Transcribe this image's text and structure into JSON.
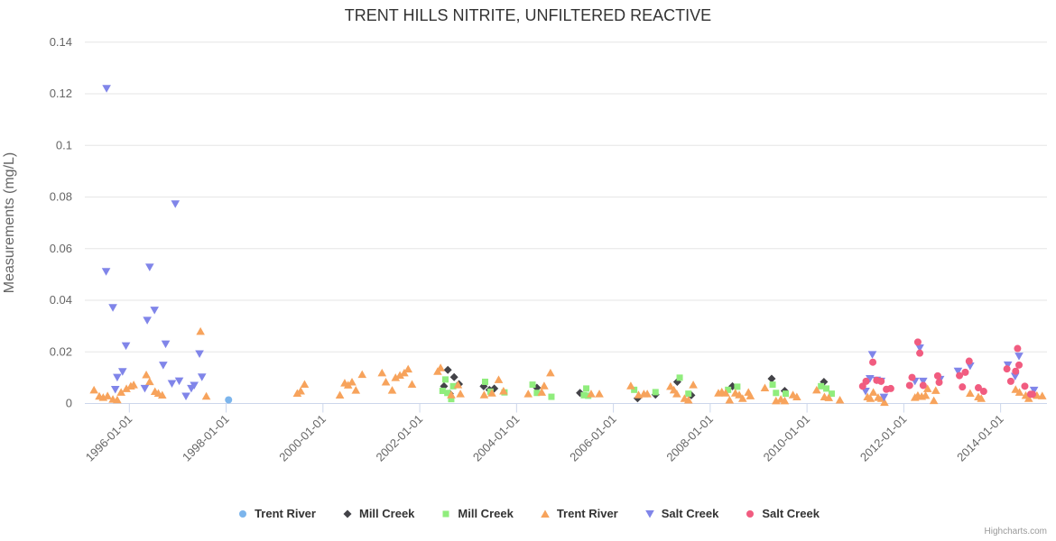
{
  "title": "TRENT HILLS NITRITE, UNFILTERED REACTIVE",
  "credit": "Highcharts.com",
  "chart_data": {
    "type": "scatter",
    "title": "TRENT HILLS NITRITE, UNFILTERED REACTIVE",
    "xlabel": "",
    "ylabel": "Measurements (mg/L)",
    "ylim": [
      0,
      0.14
    ],
    "yticks": [
      0,
      0.02,
      0.04,
      0.06,
      0.08,
      0.1,
      0.12,
      0.14
    ],
    "ytick_labels": [
      "0",
      "0.02",
      "0.04",
      "0.06",
      "0.08",
      "0.1",
      "0.12",
      "0.14"
    ],
    "xticks": [
      {
        "year": 1996,
        "label": "1996-01-01"
      },
      {
        "year": 1998,
        "label": "1998-01-01"
      },
      {
        "year": 2000,
        "label": "2000-01-01"
      },
      {
        "year": 2002,
        "label": "2002-01-01"
      },
      {
        "year": 2004,
        "label": "2004-01-01"
      },
      {
        "year": 2006,
        "label": "2006-01-01"
      },
      {
        "year": 2008,
        "label": "2008-01-01"
      },
      {
        "year": 2010,
        "label": "2010-01-01"
      },
      {
        "year": 2012,
        "label": "2012-01-01"
      },
      {
        "year": 2014,
        "label": "2014-01-01"
      }
    ],
    "grid": true,
    "legend_position": "bottom",
    "colors": {
      "grid": "#e6e6e6",
      "axis_line": "#ccd6eb",
      "tick": "#ccd6eb",
      "axis_label": "#666666",
      "title": "#333333",
      "legend_text": "#333333",
      "credit": "#999999"
    },
    "series": [
      {
        "name": "Trent River",
        "marker": "circle",
        "color": "#7cb5ec",
        "points": [
          [
            1998.05,
            0.0014
          ]
        ]
      },
      {
        "name": "Mill Creek",
        "marker": "diamond",
        "color": "#434348",
        "points": [
          [
            2002.5,
            0.0067
          ],
          [
            2002.58,
            0.013
          ],
          [
            2002.62,
            0.0038
          ],
          [
            2002.71,
            0.0102
          ],
          [
            2002.81,
            0.0075
          ],
          [
            2003.32,
            0.0067
          ],
          [
            2003.44,
            0.0053
          ],
          [
            2003.54,
            0.0058
          ],
          [
            2004.42,
            0.0061
          ],
          [
            2005.31,
            0.0041
          ],
          [
            2006.5,
            0.002
          ],
          [
            2006.87,
            0.0034
          ],
          [
            2007.32,
            0.0084
          ],
          [
            2007.61,
            0.0032
          ],
          [
            2008.46,
            0.0067
          ],
          [
            2009.27,
            0.0096
          ],
          [
            2009.54,
            0.0049
          ],
          [
            2010.35,
            0.0084
          ]
        ]
      },
      {
        "name": "Mill Creek",
        "marker": "square",
        "color": "#90ed7d",
        "points": [
          [
            2002.47,
            0.0049
          ],
          [
            2002.53,
            0.0093
          ],
          [
            2002.57,
            0.0041
          ],
          [
            2002.65,
            0.0017
          ],
          [
            2002.69,
            0.0067
          ],
          [
            2003.35,
            0.0084
          ],
          [
            2003.46,
            0.0046
          ],
          [
            2003.75,
            0.0043
          ],
          [
            2004.33,
            0.0073
          ],
          [
            2004.42,
            0.0041
          ],
          [
            2004.72,
            0.0026
          ],
          [
            2005.39,
            0.0032
          ],
          [
            2005.44,
            0.0058
          ],
          [
            2005.48,
            0.003
          ],
          [
            2006.43,
            0.0053
          ],
          [
            2006.87,
            0.0044
          ],
          [
            2007.37,
            0.01
          ],
          [
            2007.55,
            0.0038
          ],
          [
            2008.37,
            0.0053
          ],
          [
            2008.56,
            0.0065
          ],
          [
            2009.29,
            0.0073
          ],
          [
            2009.36,
            0.0041
          ],
          [
            2009.56,
            0.0038
          ],
          [
            2010.29,
            0.0067
          ],
          [
            2010.4,
            0.0058
          ],
          [
            2010.51,
            0.0038
          ]
        ]
      },
      {
        "name": "Trent River",
        "marker": "triangle",
        "color": "#f7a35c",
        "points": [
          [
            1995.27,
            0.0053
          ],
          [
            1995.38,
            0.0029
          ],
          [
            1995.46,
            0.0024
          ],
          [
            1995.55,
            0.003
          ],
          [
            1995.66,
            0.0017
          ],
          [
            1995.75,
            0.0015
          ],
          [
            1995.83,
            0.0044
          ],
          [
            1995.94,
            0.0058
          ],
          [
            1996.03,
            0.0068
          ],
          [
            1996.09,
            0.0073
          ],
          [
            1996.35,
            0.0112
          ],
          [
            1996.42,
            0.0085
          ],
          [
            1996.53,
            0.0047
          ],
          [
            1996.6,
            0.004
          ],
          [
            1996.68,
            0.0033
          ],
          [
            1997.47,
            0.028
          ],
          [
            1997.59,
            0.0029
          ],
          [
            1999.47,
            0.004
          ],
          [
            1999.54,
            0.0049
          ],
          [
            1999.62,
            0.0075
          ],
          [
            2000.35,
            0.0033
          ],
          [
            2000.45,
            0.008
          ],
          [
            2000.52,
            0.0072
          ],
          [
            2000.6,
            0.0084
          ],
          [
            2000.68,
            0.0052
          ],
          [
            2000.81,
            0.0113
          ],
          [
            2001.22,
            0.0119
          ],
          [
            2001.3,
            0.0084
          ],
          [
            2001.43,
            0.0052
          ],
          [
            2001.5,
            0.0101
          ],
          [
            2001.59,
            0.011
          ],
          [
            2001.68,
            0.0119
          ],
          [
            2001.76,
            0.0134
          ],
          [
            2001.84,
            0.0075
          ],
          [
            2002.37,
            0.0125
          ],
          [
            2002.43,
            0.0139
          ],
          [
            2002.65,
            0.0034
          ],
          [
            2002.79,
            0.0073
          ],
          [
            2002.84,
            0.0038
          ],
          [
            2003.33,
            0.0034
          ],
          [
            2003.49,
            0.0041
          ],
          [
            2003.63,
            0.0093
          ],
          [
            2003.73,
            0.0049
          ],
          [
            2004.24,
            0.0038
          ],
          [
            2004.52,
            0.0044
          ],
          [
            2004.57,
            0.0069
          ],
          [
            2004.7,
            0.0119
          ],
          [
            2005.54,
            0.0038
          ],
          [
            2005.71,
            0.0038
          ],
          [
            2006.36,
            0.0069
          ],
          [
            2006.52,
            0.0034
          ],
          [
            2006.63,
            0.0038
          ],
          [
            2006.7,
            0.0038
          ],
          [
            2007.18,
            0.0067
          ],
          [
            2007.25,
            0.0053
          ],
          [
            2007.31,
            0.0038
          ],
          [
            2007.47,
            0.002
          ],
          [
            2007.55,
            0.0014
          ],
          [
            2007.65,
            0.0073
          ],
          [
            2008.17,
            0.0041
          ],
          [
            2008.24,
            0.0046
          ],
          [
            2008.32,
            0.0041
          ],
          [
            2008.4,
            0.0014
          ],
          [
            2008.52,
            0.0041
          ],
          [
            2008.6,
            0.0034
          ],
          [
            2008.67,
            0.002
          ],
          [
            2008.79,
            0.0044
          ],
          [
            2008.83,
            0.003
          ],
          [
            2009.13,
            0.0061
          ],
          [
            2009.36,
            0.0011
          ],
          [
            2009.46,
            0.0017
          ],
          [
            2009.54,
            0.0011
          ],
          [
            2009.71,
            0.0034
          ],
          [
            2009.79,
            0.0026
          ],
          [
            2010.2,
            0.0053
          ],
          [
            2010.36,
            0.0026
          ],
          [
            2010.45,
            0.0023
          ],
          [
            2010.68,
            0.0014
          ],
          [
            2011.25,
            0.0026
          ],
          [
            2011.31,
            0.002
          ],
          [
            2011.37,
            0.0044
          ],
          [
            2011.47,
            0.0024
          ],
          [
            2011.54,
            0.002
          ],
          [
            2011.6,
            0.0005
          ],
          [
            2012.23,
            0.0024
          ],
          [
            2012.29,
            0.0032
          ],
          [
            2012.37,
            0.0028
          ],
          [
            2012.45,
            0.0032
          ],
          [
            2012.49,
            0.0058
          ],
          [
            2012.62,
            0.0012
          ],
          [
            2012.66,
            0.0051
          ],
          [
            2013.37,
            0.004
          ],
          [
            2013.54,
            0.0026
          ],
          [
            2013.6,
            0.002
          ],
          [
            2014.31,
            0.0055
          ],
          [
            2014.39,
            0.0044
          ],
          [
            2014.52,
            0.0032
          ],
          [
            2014.58,
            0.002
          ],
          [
            2014.75,
            0.0032
          ],
          [
            2014.86,
            0.003
          ]
        ]
      },
      {
        "name": "Salt Creek",
        "marker": "triangle-down",
        "color": "#8085e9",
        "points": [
          [
            1995.52,
            0.0511
          ],
          [
            1995.53,
            0.122
          ],
          [
            1995.66,
            0.0371
          ],
          [
            1995.71,
            0.0054
          ],
          [
            1995.75,
            0.0101
          ],
          [
            1995.86,
            0.0123
          ],
          [
            1995.93,
            0.0223
          ],
          [
            1996.32,
            0.0058
          ],
          [
            1996.37,
            0.0322
          ],
          [
            1996.42,
            0.0528
          ],
          [
            1996.52,
            0.0361
          ],
          [
            1996.7,
            0.0148
          ],
          [
            1996.75,
            0.023
          ],
          [
            1996.88,
            0.0077
          ],
          [
            1996.95,
            0.0773
          ],
          [
            1997.03,
            0.0087
          ],
          [
            1997.17,
            0.0028
          ],
          [
            1997.28,
            0.0058
          ],
          [
            1997.34,
            0.007
          ],
          [
            1997.45,
            0.0192
          ],
          [
            1997.5,
            0.0102
          ],
          [
            2011.21,
            0.0047
          ],
          [
            2011.3,
            0.0096
          ],
          [
            2011.35,
            0.0189
          ],
          [
            2011.44,
            0.009
          ],
          [
            2011.53,
            0.0086
          ],
          [
            2011.59,
            0.0024
          ],
          [
            2012.23,
            0.0086
          ],
          [
            2012.33,
            0.0215
          ],
          [
            2012.4,
            0.0086
          ],
          [
            2012.75,
            0.0093
          ],
          [
            2013.12,
            0.0125
          ],
          [
            2013.37,
            0.0145
          ],
          [
            2014.15,
            0.0149
          ],
          [
            2014.3,
            0.0105
          ],
          [
            2014.38,
            0.0183
          ],
          [
            2014.69,
            0.0051
          ]
        ]
      },
      {
        "name": "Salt Creek",
        "marker": "circle",
        "color": "#f15c80",
        "points": [
          [
            2011.15,
            0.0067
          ],
          [
            2011.22,
            0.0086
          ],
          [
            2011.36,
            0.016
          ],
          [
            2011.44,
            0.009
          ],
          [
            2011.53,
            0.0086
          ],
          [
            2011.64,
            0.0055
          ],
          [
            2011.73,
            0.0058
          ],
          [
            2012.12,
            0.007
          ],
          [
            2012.17,
            0.0101
          ],
          [
            2012.29,
            0.0238
          ],
          [
            2012.33,
            0.0195
          ],
          [
            2012.4,
            0.007
          ],
          [
            2012.7,
            0.0107
          ],
          [
            2012.73,
            0.0082
          ],
          [
            2013.15,
            0.0108
          ],
          [
            2013.21,
            0.0064
          ],
          [
            2013.27,
            0.0121
          ],
          [
            2013.35,
            0.0164
          ],
          [
            2013.54,
            0.0061
          ],
          [
            2013.65,
            0.0047
          ],
          [
            2014.13,
            0.0134
          ],
          [
            2014.21,
            0.0086
          ],
          [
            2014.31,
            0.0125
          ],
          [
            2014.35,
            0.0213
          ],
          [
            2014.38,
            0.0149
          ],
          [
            2014.5,
            0.0067
          ],
          [
            2014.62,
            0.0036
          ],
          [
            2014.66,
            0.0036
          ]
        ]
      }
    ]
  }
}
